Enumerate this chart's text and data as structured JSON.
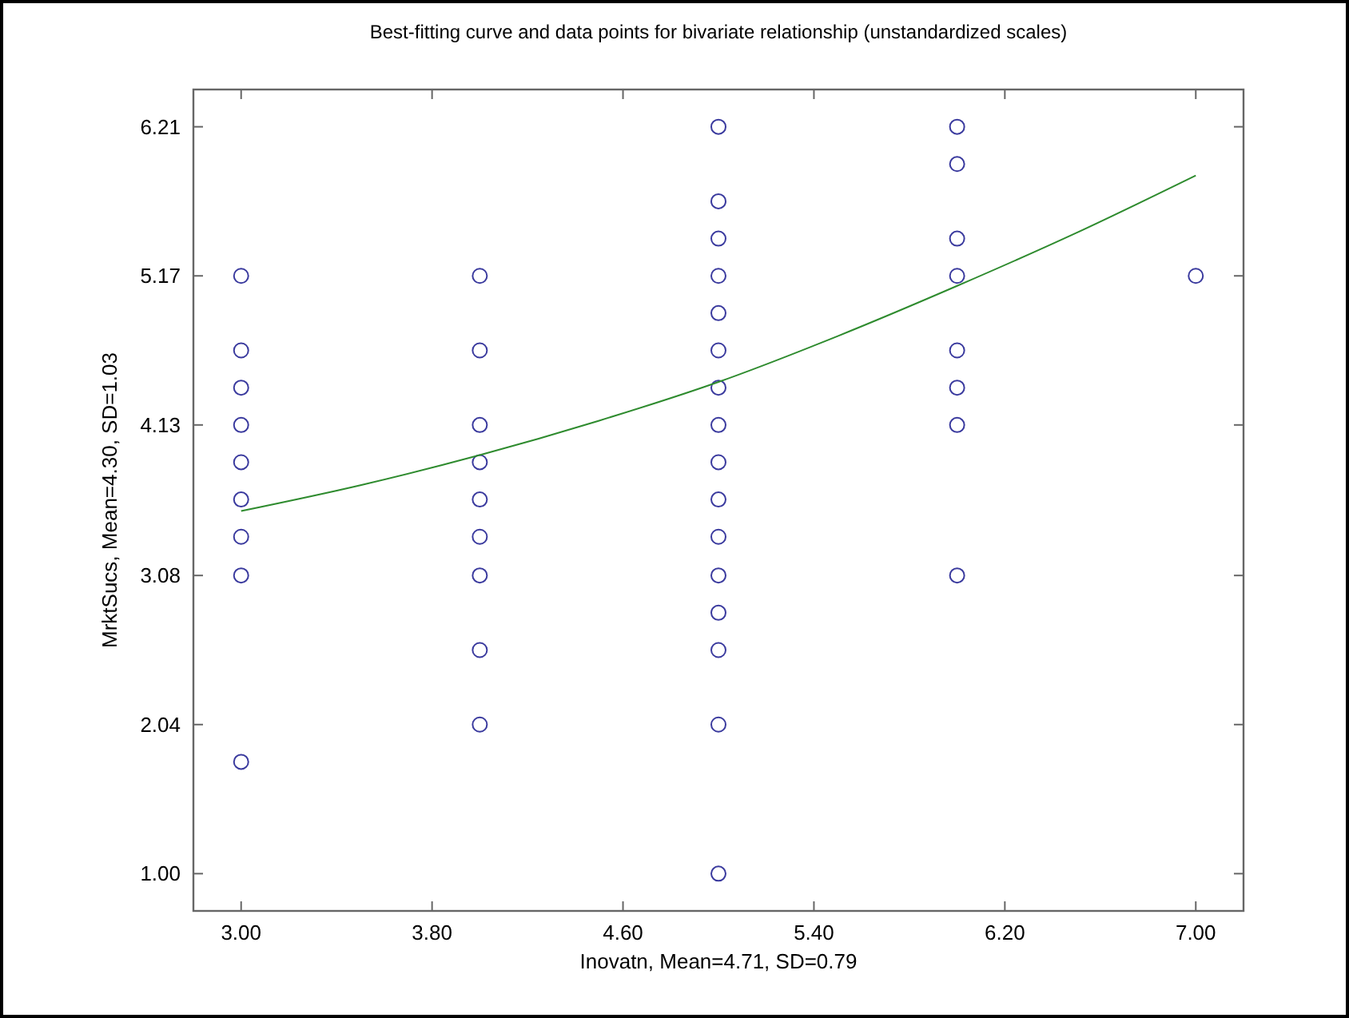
{
  "chart_data": {
    "type": "scatter",
    "title": "Best-fitting curve and data points for bivariate relationship (unstandardized scales)",
    "xlabel": "Inovatn, Mean=4.71, SD=0.79",
    "ylabel": "MrktSucs, Mean=4.30, SD=1.03",
    "xlim": [
      2.8,
      7.2
    ],
    "ylim": [
      0.74,
      6.47
    ],
    "xticks": [
      {
        "value": 3,
        "label": "3.00"
      },
      {
        "value": 3.8,
        "label": "3.80"
      },
      {
        "value": 4.6,
        "label": "4.60"
      },
      {
        "value": 5.4,
        "label": "5.40"
      },
      {
        "value": 6.2,
        "label": "6.20"
      },
      {
        "value": 7,
        "label": "7.00"
      }
    ],
    "yticks": [
      {
        "value": 1,
        "label": "1.00"
      },
      2.04,
      3.08,
      4.13,
      5.17,
      6.21
    ],
    "grid": false,
    "series": [
      {
        "color": "#3a3a9e",
        "marker": "circle",
        "x": [
          3,
          3,
          3,
          3,
          3,
          3,
          3,
          3,
          3,
          4,
          4,
          4,
          4,
          4,
          4,
          4,
          4,
          4,
          5,
          5,
          5,
          5,
          5,
          5,
          5,
          5,
          5,
          5,
          5,
          5,
          5,
          5,
          5,
          5,
          6,
          6,
          6,
          6,
          6,
          6,
          6,
          6,
          7
        ],
        "values": [
          5.17,
          4.65,
          4.39,
          4.13,
          3.87,
          3.61,
          3.35,
          3.08,
          1.78,
          5.17,
          4.65,
          4.13,
          3.87,
          3.61,
          3.35,
          3.08,
          2.56,
          2.04,
          6.21,
          5.69,
          5.43,
          5.17,
          4.91,
          4.65,
          4.39,
          4.13,
          3.87,
          3.61,
          3.35,
          3.08,
          2.82,
          2.56,
          2.04,
          1,
          6.21,
          5.95,
          5.43,
          5.17,
          4.65,
          4.39,
          4.13,
          3.08,
          5.17
        ]
      },
      {
        "type": "line",
        "color": "#2e8b2e",
        "marker": "none",
        "line_style": "solid",
        "x": [
          3,
          3.5,
          4,
          4.5,
          5,
          5.5,
          6,
          6.5,
          7
        ],
        "values": [
          3.53,
          3.71,
          3.92,
          4.16,
          4.43,
          4.75,
          5.1,
          5.47,
          5.87
        ]
      }
    ]
  }
}
